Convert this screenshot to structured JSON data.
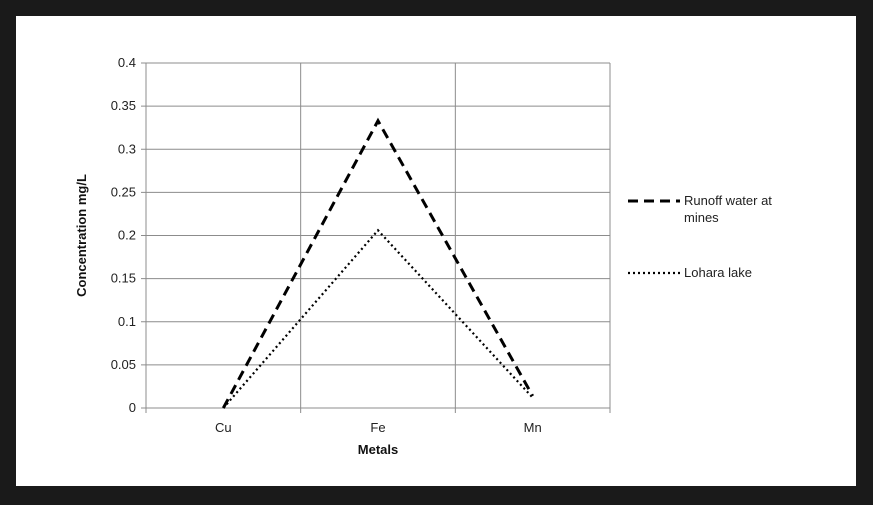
{
  "chart_data": {
    "type": "line",
    "categories": [
      "Cu",
      "Fe",
      "Mn"
    ],
    "xlabel": "Metals",
    "ylabel": "Concentration mg/L",
    "ylim": [
      0,
      0.4
    ],
    "yticks": [
      "0",
      "0.05",
      "0.1",
      "0.15",
      "0.2",
      "0.25",
      "0.3",
      "0.35",
      "0.4"
    ],
    "grid": true,
    "legend_position": "right",
    "series": [
      {
        "name": "Runoff water at mines",
        "legend_lines": [
          "Runoff water at",
          "mines"
        ],
        "style": "dashed",
        "color": "#000000",
        "values": [
          0.0,
          0.333,
          0.014
        ]
      },
      {
        "name": "Lohara lake",
        "legend_lines": [
          "Lohara lake"
        ],
        "style": "dotted",
        "color": "#000000",
        "values": [
          0.0,
          0.206,
          0.012
        ]
      }
    ]
  }
}
